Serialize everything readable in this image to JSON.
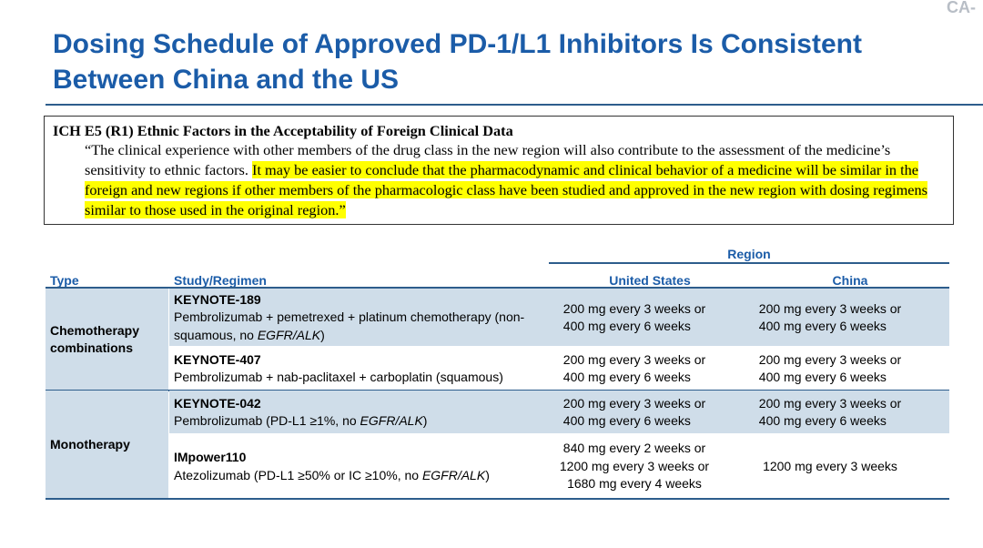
{
  "corner_label": "CA-",
  "title_lines": [
    "Dosing Schedule of Approved PD-1/L1 Inhibitors Is Consistent",
    "Between China and the US"
  ],
  "quote": {
    "heading": "ICH E5 (R1) Ethnic Factors in the Acceptability of Foreign Clinical Data",
    "text": "“The clinical experience with other members of the drug class in the new region will also contribute to the assessment of the medicine’s sensitivity to ethnic factors. ",
    "highlight": "It may be easier to conclude that the pharmacodynamic and clinical behavior of a medicine will be similar in the foreign and new regions if other members of the pharmacologic class have been studied and approved in the new region with dosing regimens similar to those used in the original region.”"
  },
  "table": {
    "group_header": "Region",
    "columns": [
      "Type",
      "Study/Regimen",
      "United States",
      "China"
    ],
    "groups": [
      {
        "type": "Chemotherapy combinations",
        "rows": [
          {
            "study": "KEYNOTE-189",
            "regimen": "Pembrolizumab + pemetrexed + platinum chemotherapy (non-squamous, no ",
            "regimen_italic": "EGFR/ALK",
            "regimen_end": ")",
            "us": [
              "200 mg every 3 weeks or",
              "400 mg every 6 weeks"
            ],
            "china": [
              "200 mg every 3 weeks or",
              "400 mg every 6 weeks"
            ]
          },
          {
            "study": "KEYNOTE-407",
            "regimen": "Pembrolizumab + nab-paclitaxel + carboplatin (squamous)",
            "us": [
              "200 mg every 3 weeks or",
              "400 mg every 6 weeks"
            ],
            "china": [
              "200 mg every 3 weeks or",
              "400 mg every 6 weeks"
            ]
          }
        ]
      },
      {
        "type": "Monotherapy",
        "rows": [
          {
            "study": "KEYNOTE-042",
            "regimen": "Pembrolizumab (PD-L1 ≥1%, no ",
            "regimen_italic": "EGFR/ALK",
            "regimen_end": ")",
            "us": [
              "200 mg every 3 weeks or",
              "400 mg every 6 weeks"
            ],
            "china": [
              "200 mg every 3 weeks or",
              "400 mg every 6 weeks"
            ]
          },
          {
            "study": "IMpower110",
            "regimen": "Atezolizumab (PD-L1 ≥50% or IC ≥10%, no ",
            "regimen_italic": "EGFR/ALK",
            "regimen_end": ")",
            "us": [
              "840 mg every 2 weeks or",
              "1200 mg every 3 weeks or",
              "1680 mg every 4 weeks"
            ],
            "china": [
              "1200 mg every 3 weeks"
            ]
          }
        ]
      }
    ]
  }
}
